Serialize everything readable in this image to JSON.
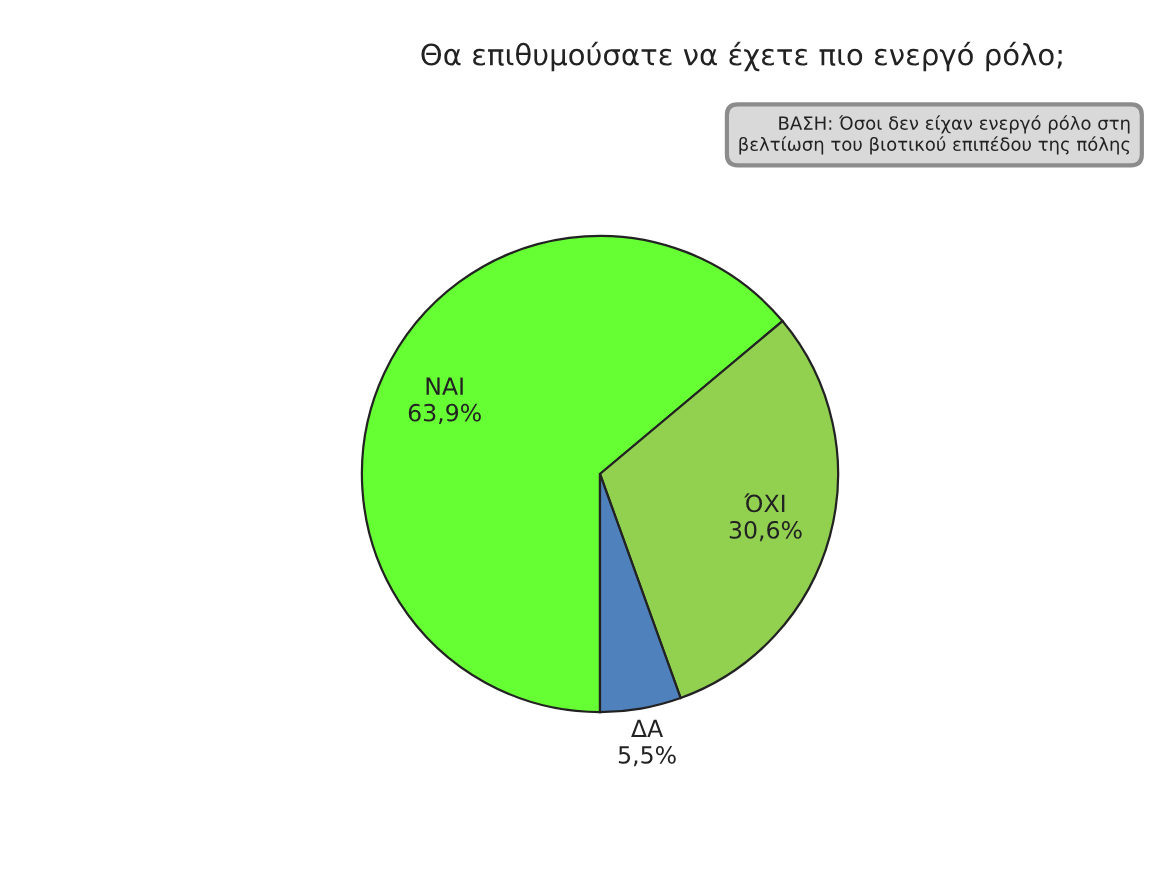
{
  "chart_data": {
    "type": "pie",
    "title": "Θα επιθυμούσατε να έχετε πιο ενεργό ρόλο;",
    "annotations": [
      "ΒΑΣΗ: Όσοι δεν είχαν ενεργό ρόλο στη\nβελτίωση του βιοτικού επιπέδου της πόλης"
    ],
    "categories": [
      "ΝΑΙ",
      "ΌΧΙ",
      "ΔΑ"
    ],
    "values": [
      63.9,
      30.6,
      5.5
    ],
    "value_labels": [
      "63,9%",
      "30,6%",
      "5,5%"
    ],
    "colors": [
      "#66ff33",
      "#92d050",
      "#4f81bd"
    ],
    "legend": false
  }
}
